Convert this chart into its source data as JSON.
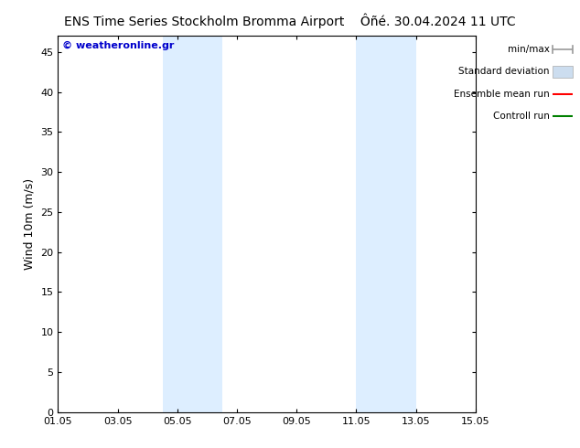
{
  "title_left": "ENS Time Series Stockholm Bromma Airport",
  "title_right": "Ôñé. 30.04.2024 11 UTC",
  "ylabel": "Wind 10m (m/s)",
  "watermark": "© weatheronline.gr",
  "watermark_color": "#0000cc",
  "ylim": [
    0,
    47
  ],
  "yticks": [
    0,
    5,
    10,
    15,
    20,
    25,
    30,
    35,
    40,
    45
  ],
  "xtick_labels": [
    "01.05",
    "03.05",
    "05.05",
    "07.05",
    "09.05",
    "11.05",
    "13.05",
    "15.05"
  ],
  "xtick_positions": [
    0,
    2,
    4,
    6,
    8,
    10,
    12,
    14
  ],
  "xlim": [
    0,
    14
  ],
  "bg_color": "#ffffff",
  "plot_bg_color": "#ffffff",
  "shaded_regions": [
    {
      "start": 3.5,
      "end": 5.5,
      "color": "#ddeeff"
    },
    {
      "start": 10.0,
      "end": 12.0,
      "color": "#ddeeff"
    }
  ],
  "legend_items": [
    {
      "label": "min/max",
      "color": "#999999",
      "type": "errorbar"
    },
    {
      "label": "Standard deviation",
      "color": "#ccddef",
      "type": "bar"
    },
    {
      "label": "Ensemble mean run",
      "color": "#ff0000",
      "type": "line"
    },
    {
      "label": "Controll run",
      "color": "#008000",
      "type": "line"
    }
  ],
  "border_color": "#000000",
  "tick_color": "#000000",
  "font_size_title": 10,
  "font_size_axis": 8,
  "font_size_legend": 7.5,
  "font_size_watermark": 8
}
